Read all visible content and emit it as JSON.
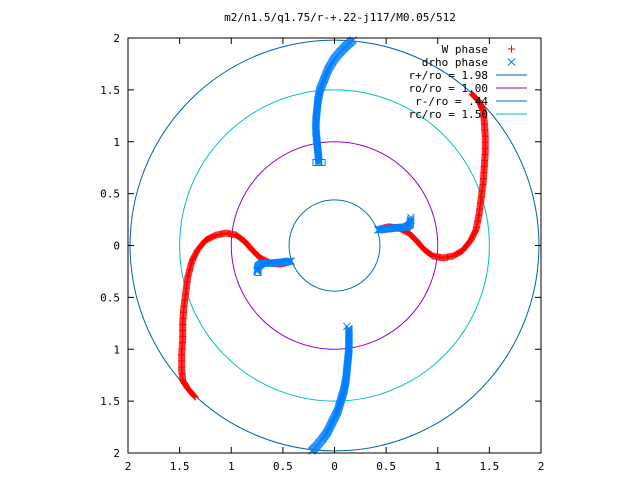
{
  "chart_data": {
    "type": "scatter",
    "title": "m2/n1.5/q1.75/r-+.22-j117/M0.05/512",
    "xlim": [
      -2,
      2
    ],
    "ylim": [
      -2,
      2
    ],
    "xticks": [
      -2,
      -1.5,
      -1,
      -0.5,
      0,
      0.5,
      1,
      1.5,
      2
    ],
    "yticks": [
      -2,
      -1.5,
      -1,
      -0.5,
      0,
      0.5,
      1,
      1.5,
      2
    ],
    "xtick_labels": [
      "2",
      "1.5",
      "1",
      "0.5",
      "0",
      "0.5",
      "1",
      "1.5",
      "2"
    ],
    "ytick_labels": [
      "2",
      "1.5",
      "1",
      "0.5",
      "0",
      "0.5",
      "1",
      "1.5",
      "2"
    ],
    "grid": false,
    "legend_position": "top-right",
    "series": [
      {
        "name": "W phase",
        "marker": "plus",
        "color": "#ff0000",
        "arms": [
          [
            [
              -1.35,
              -1.46
            ],
            [
              -1.42,
              -1.38
            ],
            [
              -1.47,
              -1.3
            ],
            [
              -1.48,
              -1.2
            ],
            [
              -1.48,
              -1.05
            ],
            [
              -1.47,
              -0.9
            ],
            [
              -1.47,
              -0.75
            ],
            [
              -1.46,
              -0.6
            ],
            [
              -1.44,
              -0.45
            ],
            [
              -1.42,
              -0.3
            ],
            [
              -1.38,
              -0.15
            ],
            [
              -1.33,
              -0.05
            ],
            [
              -1.25,
              0.05
            ],
            [
              -1.15,
              0.1
            ],
            [
              -1.05,
              0.12
            ],
            [
              -0.95,
              0.1
            ],
            [
              -0.87,
              0.04
            ],
            [
              -0.8,
              -0.04
            ],
            [
              -0.72,
              -0.12
            ],
            [
              -0.62,
              -0.17
            ],
            [
              -0.52,
              -0.18
            ],
            [
              -0.44,
              -0.16
            ]
          ],
          [
            [
              1.33,
              1.46
            ],
            [
              1.4,
              1.39
            ],
            [
              1.44,
              1.3
            ],
            [
              1.45,
              1.2
            ],
            [
              1.46,
              1.05
            ],
            [
              1.46,
              0.9
            ],
            [
              1.45,
              0.75
            ],
            [
              1.44,
              0.6
            ],
            [
              1.42,
              0.45
            ],
            [
              1.4,
              0.3
            ],
            [
              1.37,
              0.15
            ],
            [
              1.32,
              0.05
            ],
            [
              1.24,
              -0.05
            ],
            [
              1.15,
              -0.1
            ],
            [
              1.05,
              -0.12
            ],
            [
              0.95,
              -0.1
            ],
            [
              0.87,
              -0.04
            ],
            [
              0.8,
              0.04
            ],
            [
              0.72,
              0.12
            ],
            [
              0.62,
              0.17
            ],
            [
              0.52,
              0.18
            ],
            [
              0.44,
              0.16
            ]
          ]
        ]
      },
      {
        "name": "drho phase",
        "marker": "cross",
        "color": "#0080ff",
        "arms": [
          [
            [
              -0.75,
              -0.25
            ],
            [
              -0.74,
              -0.2
            ],
            [
              -0.7,
              -0.17
            ],
            [
              -0.6,
              -0.17
            ],
            [
              -0.5,
              -0.16
            ],
            [
              -0.42,
              -0.15
            ]
          ],
          [
            [
              0.42,
              0.15
            ],
            [
              0.5,
              0.16
            ],
            [
              0.6,
              0.17
            ],
            [
              0.7,
              0.18
            ],
            [
              0.73,
              0.2
            ],
            [
              0.74,
              0.25
            ]
          ],
          [
            [
              -0.15,
              0.8
            ],
            [
              -0.16,
              0.9
            ],
            [
              -0.17,
              1.0
            ],
            [
              -0.18,
              1.1
            ],
            [
              -0.18,
              1.2
            ],
            [
              -0.17,
              1.3
            ],
            [
              -0.16,
              1.4
            ],
            [
              -0.14,
              1.5
            ],
            [
              -0.1,
              1.6
            ],
            [
              -0.06,
              1.7
            ],
            [
              0.0,
              1.8
            ],
            [
              0.06,
              1.87
            ],
            [
              0.12,
              1.93
            ],
            [
              0.18,
              1.98
            ]
          ],
          [
            [
              0.14,
              -0.8
            ],
            [
              0.14,
              -0.9
            ],
            [
              0.14,
              -1.0
            ],
            [
              0.13,
              -1.1
            ],
            [
              0.12,
              -1.2
            ],
            [
              0.11,
              -1.3
            ],
            [
              0.09,
              -1.4
            ],
            [
              0.06,
              -1.5
            ],
            [
              0.03,
              -1.6
            ],
            [
              -0.02,
              -1.7
            ],
            [
              -0.07,
              -1.8
            ],
            [
              -0.12,
              -1.87
            ],
            [
              -0.18,
              -1.94
            ],
            [
              -0.22,
              -1.98
            ]
          ]
        ],
        "open_squares": [
          [
            -0.12,
            0.8
          ],
          [
            -0.18,
            0.8
          ],
          [
            -0.74,
            -0.26
          ]
        ],
        "isolated_crosses": [
          [
            0.74,
            0.27
          ],
          [
            0.12,
            -0.78
          ]
        ]
      }
    ],
    "circles": [
      {
        "name": "r+/ro = 1.98",
        "radius": 1.98,
        "color": "#0060ad"
      },
      {
        "name": "ro/ro = 1.00",
        "radius": 1.0,
        "color": "#9400d3"
      },
      {
        "name": "r-/ro = .44",
        "radius": 0.44,
        "color": "#0070c0"
      },
      {
        "name": "rc/ro = 1.50",
        "radius": 1.5,
        "color": "#00c0c0"
      }
    ]
  }
}
